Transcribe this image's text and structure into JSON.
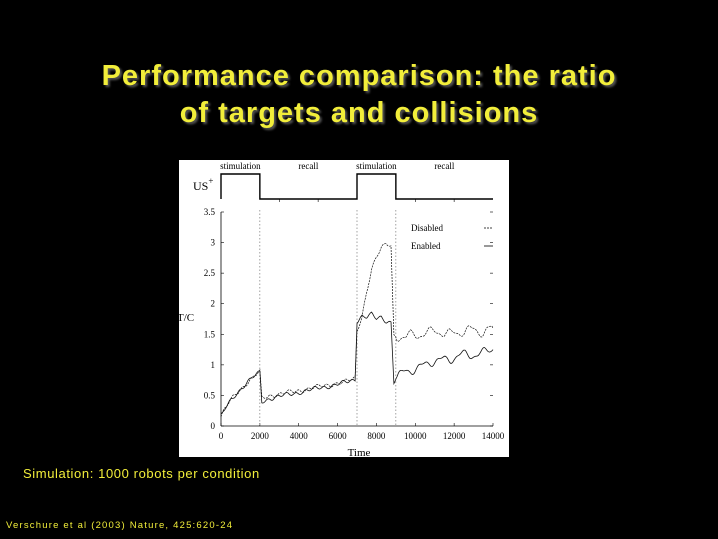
{
  "slide": {
    "title_line1": "Performance comparison: the ratio",
    "title_line2": "of targets and collisions",
    "caption": "Simulation: 1000 robots per condition",
    "citation": "Verschure et al (2003) Nature, 425:620-24",
    "text_color": "#f2ee3a",
    "background": "#000000"
  },
  "chart_data": {
    "type": "line",
    "xlabel": "Time",
    "ylabel": "T/C",
    "xlim": [
      0,
      14000
    ],
    "ylim": [
      0,
      3.5
    ],
    "x_ticks": [
      0,
      2000,
      4000,
      6000,
      8000,
      10000,
      12000,
      14000
    ],
    "y_ticks": [
      0,
      0.5,
      1,
      1.5,
      2,
      2.5,
      3,
      3.5
    ],
    "legend_position": "top-right",
    "legend": [
      "Disabled",
      "Enabled"
    ],
    "phases": [
      {
        "label": "stimulation",
        "start": 0,
        "end": 2000
      },
      {
        "label": "recall",
        "start": 2000,
        "end": 7000
      },
      {
        "label": "stimulation",
        "start": 7000,
        "end": 9000
      },
      {
        "label": "recall",
        "start": 9000,
        "end": 14000
      }
    ],
    "us_label": "US",
    "us_superscript": "+",
    "stimulus_on": [
      [
        0,
        2000
      ],
      [
        7000,
        9000
      ]
    ],
    "series": [
      {
        "name": "Disabled",
        "x": [
          0,
          250,
          500,
          750,
          1000,
          1250,
          1500,
          1750,
          2000,
          2100,
          2500,
          3000,
          3500,
          4000,
          4500,
          5000,
          5500,
          6000,
          6500,
          6900,
          7000,
          7250,
          7500,
          7750,
          8000,
          8250,
          8500,
          8750,
          8900,
          9000,
          9250,
          9500,
          9750,
          10000,
          10500,
          11000,
          11500,
          12000,
          12500,
          13000,
          13500,
          14000
        ],
        "y": [
          0.15,
          0.3,
          0.42,
          0.52,
          0.6,
          0.68,
          0.75,
          0.82,
          0.88,
          0.45,
          0.5,
          0.52,
          0.55,
          0.58,
          0.61,
          0.64,
          0.67,
          0.7,
          0.73,
          0.78,
          1.55,
          1.8,
          2.2,
          2.55,
          2.75,
          2.9,
          3.0,
          2.95,
          1.5,
          1.48,
          1.45,
          1.42,
          1.48,
          1.5,
          1.52,
          1.55,
          1.5,
          1.55,
          1.52,
          1.58,
          1.55,
          1.6
        ]
      },
      {
        "name": "Enabled",
        "x": [
          0,
          250,
          500,
          750,
          1000,
          1250,
          1500,
          1750,
          2000,
          2100,
          2500,
          3000,
          3500,
          4000,
          4500,
          5000,
          5500,
          6000,
          6500,
          6900,
          7000,
          7250,
          7500,
          7750,
          8000,
          8250,
          8500,
          8750,
          8900,
          9000,
          9250,
          9500,
          9750,
          10000,
          10500,
          11000,
          11500,
          12000,
          12500,
          13000,
          13500,
          14000
        ],
        "y": [
          0.15,
          0.3,
          0.42,
          0.52,
          0.6,
          0.68,
          0.75,
          0.82,
          0.88,
          0.4,
          0.45,
          0.48,
          0.52,
          0.55,
          0.58,
          0.62,
          0.65,
          0.68,
          0.72,
          0.76,
          1.72,
          1.8,
          1.78,
          1.82,
          1.75,
          1.78,
          1.72,
          1.7,
          0.72,
          0.78,
          0.82,
          0.88,
          0.92,
          0.95,
          1.0,
          1.05,
          1.1,
          1.12,
          1.15,
          1.18,
          1.2,
          1.25
        ]
      }
    ]
  }
}
